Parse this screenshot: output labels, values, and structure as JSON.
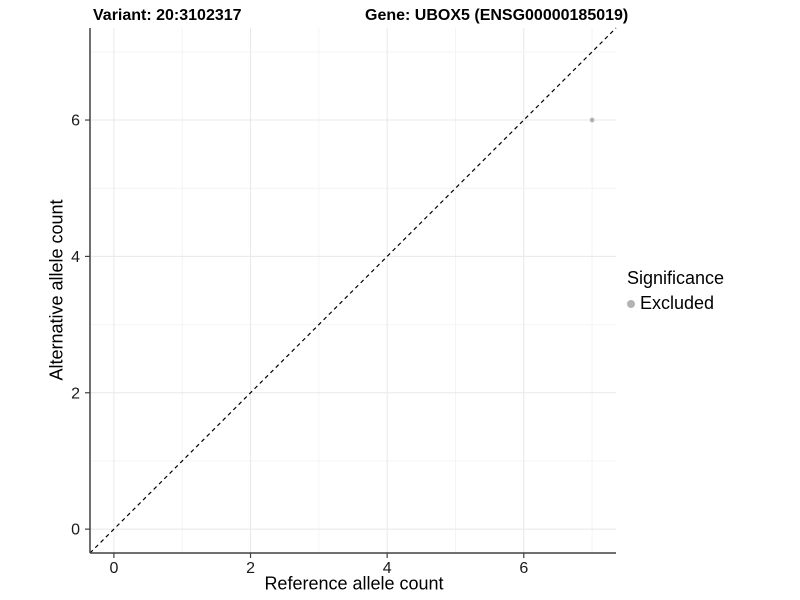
{
  "header": {
    "title_left": "Variant: 20:3102317",
    "title_right": "Gene: UBOX5 (ENSG00000185019)"
  },
  "chart_data": {
    "type": "scatter",
    "title_left": "Variant: 20:3102317",
    "title_right": "Gene: UBOX5 (ENSG00000185019)",
    "xlabel": "Reference allele count",
    "ylabel": "Alternative allele count",
    "xlim": [
      -0.35,
      7.35
    ],
    "ylim": [
      -0.35,
      7.35
    ],
    "x_ticks": [
      0,
      2,
      4,
      6
    ],
    "y_ticks": [
      0,
      2,
      4,
      6
    ],
    "x_minor_gridlines": [
      1,
      3,
      5,
      7
    ],
    "y_minor_gridlines": [
      1,
      3,
      5,
      7
    ],
    "grid": true,
    "identity_line": {
      "style": "dashed",
      "color": "#000000",
      "from": [
        -0.35,
        -0.35
      ],
      "to": [
        7.35,
        7.35
      ]
    },
    "series": [
      {
        "name": "Excluded",
        "color": "#b3b3b3",
        "points": [
          [
            7,
            6
          ]
        ]
      }
    ],
    "legend": {
      "title": "Significance",
      "position": "right",
      "entries": [
        {
          "label": "Excluded",
          "color": "#b3b3b3"
        }
      ]
    },
    "colors": {
      "axis_line": "#404040",
      "tick_label": "#1a1a1a",
      "grid_major": "#e8e8e8",
      "grid_minor": "#f4f4f4",
      "background": "#ffffff"
    }
  }
}
